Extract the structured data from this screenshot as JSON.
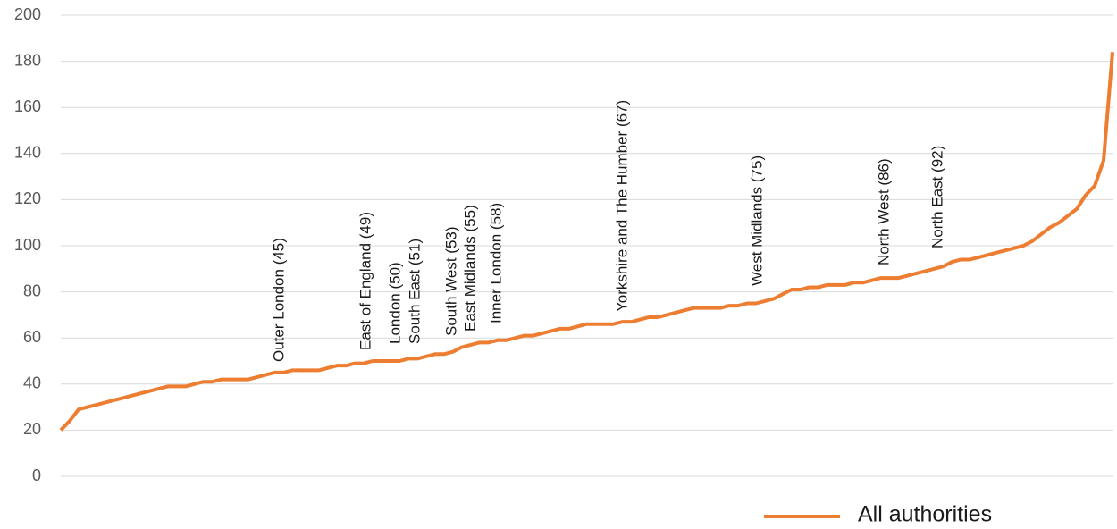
{
  "chart_data": {
    "type": "line",
    "series": [
      {
        "name": "All authorities",
        "color": "#ed7d31",
        "values": [
          20,
          24,
          29,
          30,
          31,
          32,
          33,
          34,
          35,
          36,
          37,
          38,
          39,
          39,
          39,
          40,
          41,
          41,
          42,
          42,
          42,
          42,
          43,
          44,
          45,
          45,
          46,
          46,
          46,
          46,
          47,
          48,
          48,
          49,
          49,
          50,
          50,
          50,
          50,
          51,
          51,
          52,
          53,
          53,
          54,
          56,
          57,
          58,
          58,
          59,
          59,
          60,
          61,
          61,
          62,
          63,
          64,
          64,
          65,
          66,
          66,
          66,
          66,
          67,
          67,
          68,
          69,
          69,
          70,
          71,
          72,
          73,
          73,
          73,
          73,
          74,
          74,
          75,
          75,
          76,
          77,
          79,
          81,
          81,
          82,
          82,
          83,
          83,
          83,
          84,
          84,
          85,
          86,
          86,
          86,
          87,
          88,
          89,
          90,
          91,
          93,
          94,
          94,
          95,
          96,
          97,
          98,
          99,
          100,
          102,
          105,
          108,
          110,
          113,
          116,
          122,
          126,
          137,
          184
        ]
      }
    ],
    "annotations": [
      "Outer London (45)",
      "East of England (49)",
      "London (50)",
      "South East (51)",
      "South West (53)",
      "East Midlands (55)",
      "Inner London (58)",
      "Yorkshire and The Humber (67)",
      "West Midlands (75)",
      "North West (86)",
      "North East (92)"
    ],
    "ylim": [
      0,
      200
    ],
    "yticks": [
      0,
      20,
      40,
      60,
      80,
      100,
      120,
      140,
      160,
      180,
      200
    ],
    "grid": true,
    "legend": "bottom"
  }
}
